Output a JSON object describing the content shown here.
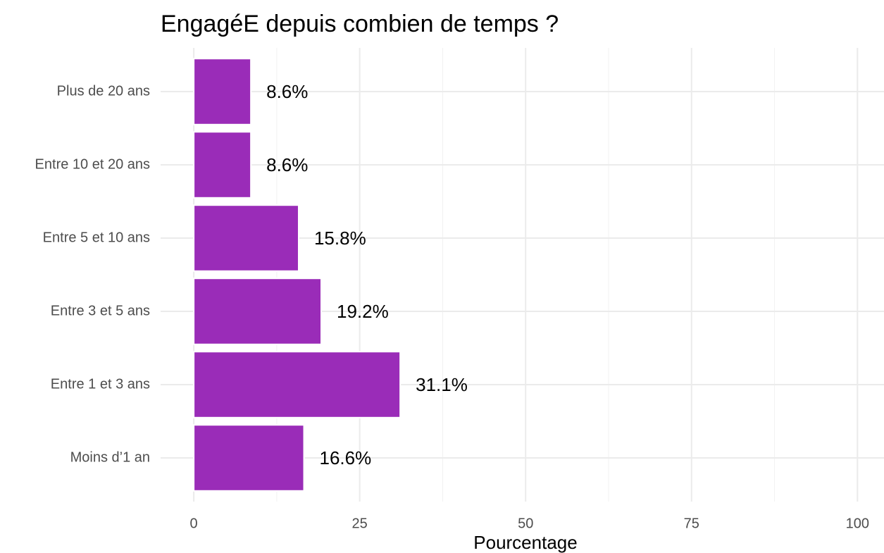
{
  "chart_data": {
    "type": "barh",
    "title": "EngagéE depuis combien de temps ?",
    "xlabel": "Pourcentage",
    "categories": [
      "Plus de 20 ans",
      "Entre 10 et 20 ans",
      "Entre 5 et 10 ans",
      "Entre 3 et 5 ans",
      "Entre 1 et 3 ans",
      "Moins d’1 an"
    ],
    "values": [
      8.6,
      8.6,
      15.8,
      19.2,
      31.1,
      16.6
    ],
    "value_labels": [
      "8.6%",
      "8.6%",
      "15.8%",
      "19.2%",
      "31.1%",
      "16.6%"
    ],
    "color": "#9a2cb8",
    "xlim": [
      -5,
      104
    ],
    "xticks": [
      0,
      25,
      50,
      75,
      100
    ],
    "xminorticks": [
      12.5,
      37.5,
      62.5,
      87.5
    ],
    "grid": true
  }
}
